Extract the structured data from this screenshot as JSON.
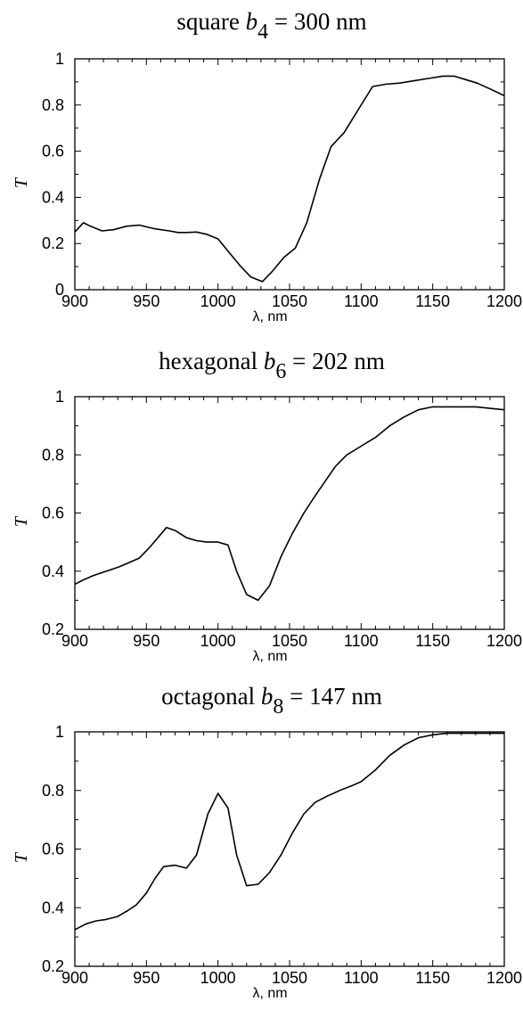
{
  "chart_data": [
    {
      "type": "line",
      "title": {
        "prefix": "square ",
        "symbol": "b",
        "sub": "4",
        "suffix": " = 300 nm"
      },
      "xlabel": "λ, nm",
      "ylabel": "T",
      "xlim": [
        900,
        1200
      ],
      "ylim": [
        0,
        1
      ],
      "xticks": [
        900,
        950,
        1000,
        1050,
        1100,
        1150,
        1200
      ],
      "yticks": [
        0,
        0.2,
        0.4,
        0.6,
        0.8,
        1
      ],
      "ytick_labels": [
        "0",
        "0.2",
        "0.4",
        "0.6",
        "0.8",
        "1"
      ],
      "grid": false,
      "series": [
        {
          "x": [
            900,
            906,
            911,
            919,
            927,
            936,
            945,
            955,
            966,
            972,
            978,
            985,
            992,
            1000,
            1008,
            1016,
            1023,
            1031,
            1038,
            1046,
            1054,
            1062,
            1071,
            1079,
            1088,
            1098,
            1108,
            1117,
            1127,
            1137,
            1147,
            1157,
            1165,
            1173,
            1181,
            1190,
            1200
          ],
          "y": [
            0.25,
            0.29,
            0.275,
            0.255,
            0.26,
            0.275,
            0.28,
            0.265,
            0.255,
            0.248,
            0.248,
            0.25,
            0.24,
            0.22,
            0.16,
            0.1,
            0.055,
            0.035,
            0.08,
            0.14,
            0.18,
            0.29,
            0.48,
            0.62,
            0.68,
            0.78,
            0.88,
            0.89,
            0.895,
            0.905,
            0.915,
            0.925,
            0.925,
            0.91,
            0.895,
            0.87,
            0.84
          ]
        }
      ]
    },
    {
      "type": "line",
      "title": {
        "prefix": "hexagonal ",
        "symbol": "b",
        "sub": "6",
        "suffix": " = 202 nm"
      },
      "xlabel": "λ, nm",
      "ylabel": "T",
      "xlim": [
        900,
        1200
      ],
      "ylim": [
        0.2,
        1
      ],
      "xticks": [
        900,
        950,
        1000,
        1050,
        1100,
        1150,
        1200
      ],
      "yticks": [
        0.2,
        0.4,
        0.6,
        0.8,
        1
      ],
      "ytick_labels": [
        "0.2",
        "0.4",
        "0.6",
        "0.8",
        "1"
      ],
      "grid": false,
      "series": [
        {
          "x": [
            900,
            906,
            913,
            922,
            931,
            938,
            945,
            952,
            958,
            964,
            970,
            978,
            985,
            992,
            1000,
            1007,
            1013,
            1020,
            1028,
            1036,
            1044,
            1052,
            1060,
            1068,
            1075,
            1082,
            1090,
            1100,
            1110,
            1120,
            1130,
            1140,
            1150,
            1160,
            1170,
            1180,
            1190,
            1200
          ],
          "y": [
            0.355,
            0.37,
            0.385,
            0.4,
            0.415,
            0.43,
            0.445,
            0.48,
            0.515,
            0.55,
            0.54,
            0.515,
            0.505,
            0.5,
            0.5,
            0.49,
            0.4,
            0.32,
            0.3,
            0.35,
            0.45,
            0.53,
            0.6,
            0.66,
            0.71,
            0.76,
            0.8,
            0.83,
            0.86,
            0.9,
            0.93,
            0.955,
            0.965,
            0.965,
            0.965,
            0.965,
            0.96,
            0.955
          ]
        }
      ]
    },
    {
      "type": "line",
      "title": {
        "prefix": "octagonal ",
        "symbol": "b",
        "sub": "8",
        "suffix": " = 147 nm"
      },
      "xlabel": "λ, nm",
      "ylabel": "T",
      "xlim": [
        900,
        1200
      ],
      "ylim": [
        0.2,
        1
      ],
      "xticks": [
        900,
        950,
        1000,
        1050,
        1100,
        1150,
        1200
      ],
      "yticks": [
        0.2,
        0.4,
        0.6,
        0.8,
        1
      ],
      "ytick_labels": [
        "0.2",
        "0.4",
        "0.6",
        "0.8",
        "1"
      ],
      "grid": false,
      "series": [
        {
          "x": [
            900,
            908,
            915,
            922,
            930,
            937,
            943,
            950,
            956,
            962,
            970,
            978,
            985,
            993,
            1000,
            1007,
            1013,
            1020,
            1028,
            1036,
            1044,
            1052,
            1060,
            1068,
            1076,
            1085,
            1093,
            1100,
            1110,
            1120,
            1130,
            1140,
            1150,
            1160,
            1170,
            1180,
            1190,
            1200
          ],
          "y": [
            0.325,
            0.345,
            0.355,
            0.36,
            0.37,
            0.39,
            0.41,
            0.45,
            0.5,
            0.54,
            0.545,
            0.535,
            0.58,
            0.72,
            0.79,
            0.74,
            0.58,
            0.475,
            0.48,
            0.52,
            0.58,
            0.655,
            0.72,
            0.76,
            0.78,
            0.8,
            0.815,
            0.83,
            0.87,
            0.92,
            0.955,
            0.98,
            0.99,
            0.995,
            0.995,
            0.995,
            0.995,
            0.995
          ]
        }
      ]
    }
  ]
}
